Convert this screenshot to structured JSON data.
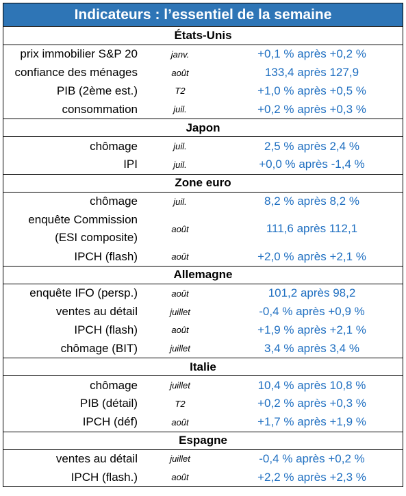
{
  "title": "Indicateurs : l’essentiel de la semaine",
  "sections": [
    {
      "name": "États-Unis",
      "rows": [
        {
          "label": "prix immobilier S&P 20",
          "period": "janv.",
          "value": "+0,1 % après +0,2 %"
        },
        {
          "label": "confiance des ménages",
          "period": "août",
          "value": "133,4 après 127,9"
        },
        {
          "label": "PIB (2ème est.)",
          "period": "T2",
          "value": "+1,0 % après +0,5 %"
        },
        {
          "label": "consommation",
          "period": "juil.",
          "value": "+0,2 % après +0,3 %"
        }
      ]
    },
    {
      "name": "Japon",
      "rows": [
        {
          "label": "chômage",
          "period": "juil.",
          "value": "2,5 % après 2,4 %"
        },
        {
          "label": "IPI",
          "period": "juil.",
          "value": "+0,0 % après -1,4 %"
        }
      ]
    },
    {
      "name": "Zone euro",
      "rows": [
        {
          "label": "chômage",
          "period": "juil.",
          "value": "8,2 % après 8,2 %"
        },
        {
          "label": "enquête Commission",
          "label2": "(ESI composite)",
          "period": "août",
          "value": "111,6 après 112,1"
        },
        {
          "label": "IPCH (flash)",
          "period": "août",
          "value": "+2,0 % après +2,1 %"
        }
      ]
    },
    {
      "name": "Allemagne",
      "rows": [
        {
          "label": "enquête IFO (persp.)",
          "period": "août",
          "value": "101,2 après 98,2"
        },
        {
          "label": "ventes au détail",
          "period": "juillet",
          "value": "-0,4 % après +0,9 %"
        },
        {
          "label": "IPCH (flash)",
          "period": "août",
          "value": "+1,9 % après +2,1 %"
        },
        {
          "label": "chômage (BIT)",
          "period": "juillet",
          "value": "3,4 % après 3,4 %"
        }
      ]
    },
    {
      "name": "Italie",
      "rows": [
        {
          "label": "chômage",
          "period": "juillet",
          "value": "10,4 % après 10,8 %"
        },
        {
          "label": "PIB (détail)",
          "period": "T2",
          "value": "+0,2 % après +0,3 %"
        },
        {
          "label": "IPCH (déf)",
          "period": "août",
          "value": "+1,7 % après +1,9 %"
        }
      ]
    },
    {
      "name": "Espagne",
      "rows": [
        {
          "label": "ventes au détail",
          "period": "juillet",
          "value": "-0,4 % après +0,2 %"
        },
        {
          "label": "IPCH (flash.)",
          "period": "août",
          "value": "+2,2 % après +2,3 %"
        }
      ]
    }
  ]
}
